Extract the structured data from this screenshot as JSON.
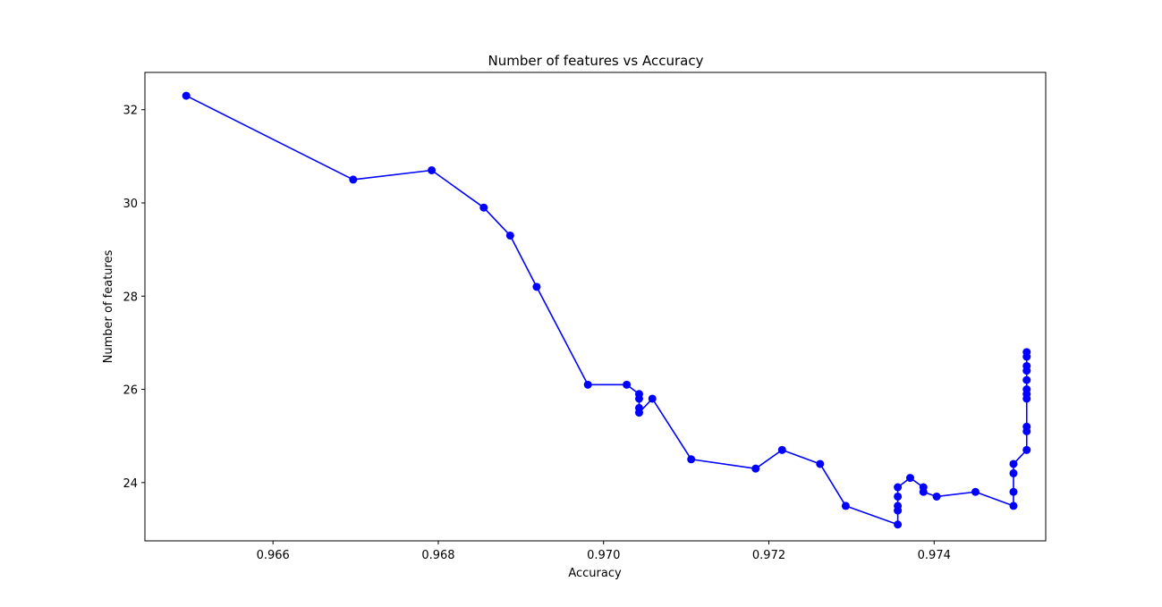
{
  "chart_data": {
    "type": "line",
    "title": "Number of features vs Accuracy",
    "xlabel": "Accuracy",
    "ylabel": "Number of features",
    "xlim": [
      0.96445,
      0.97535
    ],
    "ylim": [
      22.75,
      32.8
    ],
    "xticks": [
      0.966,
      0.968,
      0.97,
      0.972,
      0.974
    ],
    "xtick_labels": [
      "0.966",
      "0.968",
      "0.970",
      "0.972",
      "0.974"
    ],
    "yticks": [
      24,
      26,
      28,
      30,
      32
    ],
    "ytick_labels": [
      "24",
      "26",
      "28",
      "30",
      "32"
    ],
    "grid": false,
    "legend": "none",
    "series_color": "#0000ff",
    "series": [
      {
        "marker": "circle",
        "x": [
          0.96495,
          0.96697,
          0.96792,
          0.96855,
          0.96887,
          0.96919,
          0.96981,
          0.97028,
          0.97043,
          0.97043,
          0.97043,
          0.97043,
          0.97059,
          0.97106,
          0.97184,
          0.97216,
          0.97262,
          0.97293,
          0.97356,
          0.97356,
          0.97356,
          0.97356,
          0.97356,
          0.97371,
          0.97387,
          0.97387,
          0.97403,
          0.9745,
          0.97496,
          0.97496,
          0.97496,
          0.97496,
          0.97512,
          0.97512,
          0.97512,
          0.97512,
          0.97512,
          0.97512,
          0.97512,
          0.97512,
          0.97512,
          0.97512,
          0.97512
        ],
        "y": [
          32.3,
          30.5,
          30.7,
          29.9,
          29.3,
          28.2,
          26.1,
          26.1,
          25.9,
          25.8,
          25.6,
          25.5,
          25.8,
          24.5,
          24.3,
          24.7,
          24.4,
          23.5,
          23.1,
          23.4,
          23.5,
          23.7,
          23.9,
          24.1,
          23.9,
          23.8,
          23.7,
          23.8,
          23.5,
          23.8,
          24.2,
          24.4,
          24.7,
          25.1,
          25.2,
          25.8,
          25.9,
          26.0,
          26.2,
          26.4,
          26.5,
          26.7,
          26.8
        ]
      }
    ]
  }
}
